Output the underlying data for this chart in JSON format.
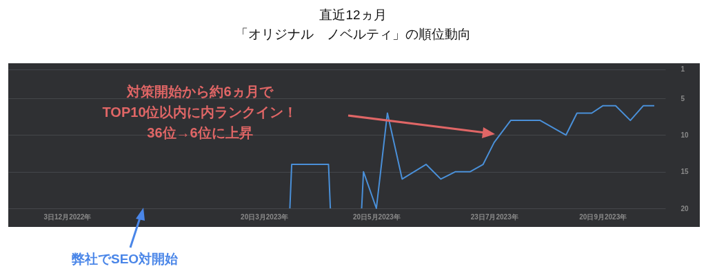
{
  "chart_data": {
    "type": "line",
    "title": "直近12ヵ月",
    "subtitle": "「オリジナル　ノベルティ」の順位動向",
    "x": [
      "2023-04-03",
      "2023-04-04",
      "2023-04-24",
      "2023-04-25",
      "2023-05-01",
      "2023-05-12",
      "2023-05-13",
      "2023-05-20",
      "2023-05-26",
      "2023-06-03",
      "2023-06-16",
      "2023-06-24",
      "2023-07-02",
      "2023-07-10",
      "2023-07-17",
      "2023-07-23",
      "2023-08-01",
      "2023-08-17",
      "2023-08-31",
      "2023-09-06",
      "2023-09-14",
      "2023-09-20",
      "2023-09-27",
      "2023-10-05",
      "2023-10-12",
      "2023-10-18"
    ],
    "series": [
      {
        "color": "#4a90d9",
        "values": [
          20,
          14,
          14,
          20,
          null,
          20,
          15,
          20,
          7,
          16,
          14,
          16,
          15,
          15,
          14,
          11,
          8,
          8,
          10,
          7,
          7,
          6,
          6,
          8,
          6,
          6
        ]
      }
    ],
    "xlim": [
      "2022-11-01",
      "2023-10-24"
    ],
    "xticks": [
      {
        "value": "2022-12-03",
        "label": "3日12月2022年"
      },
      {
        "value": "2023-03-20",
        "label": "20日3月2023年"
      },
      {
        "value": "2023-05-20",
        "label": "20日5月2023年"
      },
      {
        "value": "2023-07-23",
        "label": "23日7月2023年"
      },
      {
        "value": "2023-09-20",
        "label": "20日9月2023年"
      }
    ],
    "ylim": [
      20,
      0.2
    ],
    "yticks": [
      1,
      5,
      10,
      15,
      20
    ],
    "grid": "y",
    "annotations": [
      "対策開始から約6ヵ月で\nTOP10位以内に内ランクイン！\n36位→6位に上昇",
      "弊社でSEO対開始"
    ]
  }
}
